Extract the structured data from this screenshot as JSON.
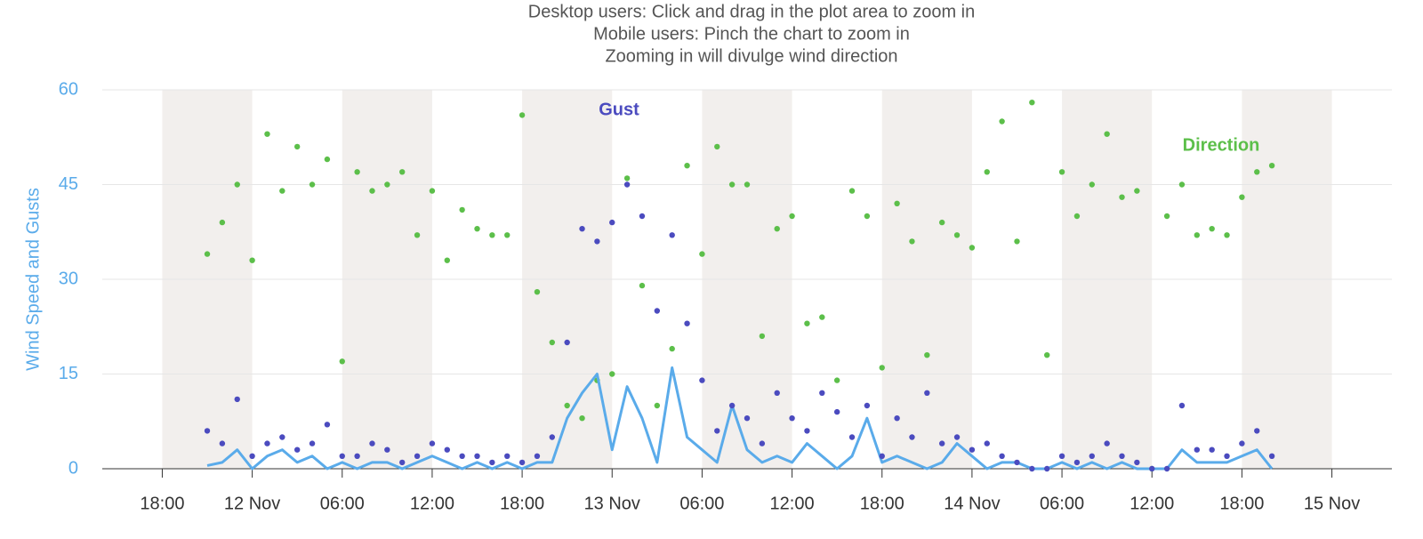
{
  "chart_data": {
    "type": "line",
    "title": "Desktop users: Click and drag in the plot area to zoom in",
    "subtitle": [
      "Mobile users: Pinch the chart to zoom in",
      "Zooming in will divulge wind direction"
    ],
    "y_label": "Wind Speed and Gusts",
    "annotations": [
      "Gust",
      "Direction"
    ],
    "x": [
      "11 Nov 21:00",
      "11 Nov 22:00",
      "11 Nov 23:00",
      "12 Nov 00:00",
      "12 Nov 01:00",
      "12 Nov 02:00",
      "12 Nov 03:00",
      "12 Nov 04:00",
      "12 Nov 05:00",
      "12 Nov 06:00",
      "12 Nov 07:00",
      "12 Nov 08:00",
      "12 Nov 09:00",
      "12 Nov 10:00",
      "12 Nov 11:00",
      "12 Nov 12:00",
      "12 Nov 13:00",
      "12 Nov 14:00",
      "12 Nov 15:00",
      "12 Nov 16:00",
      "12 Nov 17:00",
      "12 Nov 18:00",
      "12 Nov 19:00",
      "12 Nov 20:00",
      "12 Nov 21:00",
      "12 Nov 22:00",
      "12 Nov 23:00",
      "13 Nov 00:00",
      "13 Nov 01:00",
      "13 Nov 02:00",
      "13 Nov 03:00",
      "13 Nov 04:00",
      "13 Nov 05:00",
      "13 Nov 06:00",
      "13 Nov 07:00",
      "13 Nov 08:00",
      "13 Nov 09:00",
      "13 Nov 10:00",
      "13 Nov 11:00",
      "13 Nov 12:00",
      "13 Nov 13:00",
      "13 Nov 14:00",
      "13 Nov 15:00",
      "13 Nov 16:00",
      "13 Nov 17:00",
      "13 Nov 18:00",
      "13 Nov 19:00",
      "13 Nov 20:00",
      "13 Nov 21:00",
      "13 Nov 22:00",
      "13 Nov 23:00",
      "14 Nov 00:00",
      "14 Nov 01:00",
      "14 Nov 02:00",
      "14 Nov 03:00",
      "14 Nov 04:00",
      "14 Nov 05:00",
      "14 Nov 06:00",
      "14 Nov 07:00",
      "14 Nov 08:00",
      "14 Nov 09:00",
      "14 Nov 10:00",
      "14 Nov 11:00",
      "14 Nov 12:00",
      "14 Nov 13:00",
      "14 Nov 14:00",
      "14 Nov 15:00",
      "14 Nov 16:00",
      "14 Nov 17:00",
      "14 Nov 18:00",
      "14 Nov 19:00",
      "14 Nov 20:00"
    ],
    "series": [
      {
        "name": "Wind Speed",
        "type": "line",
        "color": "#5aabea",
        "values": [
          0.5,
          1,
          3,
          0,
          2,
          3,
          1,
          2,
          0,
          1,
          0,
          1,
          1,
          0,
          1,
          2,
          1,
          0,
          1,
          0,
          1,
          0,
          1,
          1,
          8,
          12,
          15,
          3,
          13,
          8,
          1,
          16,
          5,
          3,
          1,
          10,
          3,
          1,
          2,
          1,
          4,
          2,
          0,
          2,
          8,
          1,
          2,
          1,
          0,
          1,
          4,
          2,
          0,
          1,
          1,
          0,
          0,
          1,
          0,
          1,
          0,
          1,
          0,
          0,
          0,
          3,
          1,
          1,
          1,
          2,
          3,
          0
        ]
      },
      {
        "name": "Gust",
        "type": "scatter",
        "color": "#4b4bbf",
        "values": [
          6,
          4,
          11,
          2,
          4,
          5,
          3,
          4,
          7,
          2,
          2,
          4,
          3,
          1,
          2,
          4,
          3,
          2,
          2,
          1,
          2,
          1,
          2,
          5,
          20,
          38,
          36,
          39,
          45,
          40,
          25,
          37,
          23,
          14,
          6,
          10,
          8,
          4,
          12,
          8,
          6,
          12,
          9,
          5,
          10,
          2,
          8,
          5,
          12,
          4,
          5,
          3,
          4,
          2,
          1,
          0,
          0,
          2,
          1,
          2,
          4,
          2,
          1,
          0,
          0,
          10,
          3,
          3,
          2,
          4,
          6,
          2
        ]
      },
      {
        "name": "Direction",
        "type": "scatter",
        "color": "#5cbf4a",
        "values": [
          34,
          39,
          45,
          33,
          53,
          44,
          51,
          45,
          49,
          17,
          47,
          44,
          45,
          47,
          37,
          44,
          33,
          41,
          38,
          37,
          37,
          56,
          28,
          20,
          10,
          8,
          14,
          15,
          46,
          29,
          10,
          19,
          48,
          34,
          51,
          45,
          45,
          21,
          38,
          40,
          23,
          24,
          14,
          44,
          40,
          16,
          42,
          36,
          18,
          39,
          37,
          35,
          47,
          55,
          36,
          58,
          18,
          47,
          40,
          45,
          53,
          43,
          44,
          0,
          40,
          45,
          37,
          38,
          37,
          43,
          47,
          48
        ]
      }
    ],
    "xlim": [
      "11 Nov 14:00",
      "15 Nov 04:00"
    ],
    "xticks": [
      {
        "value": "11 Nov 18:00",
        "label": "18:00"
      },
      {
        "value": "12 Nov 00:00",
        "label": "12 Nov"
      },
      {
        "value": "12 Nov 06:00",
        "label": "06:00"
      },
      {
        "value": "12 Nov 12:00",
        "label": "12:00"
      },
      {
        "value": "12 Nov 18:00",
        "label": "18:00"
      },
      {
        "value": "13 Nov 00:00",
        "label": "13 Nov"
      },
      {
        "value": "13 Nov 06:00",
        "label": "06:00"
      },
      {
        "value": "13 Nov 12:00",
        "label": "12:00"
      },
      {
        "value": "13 Nov 18:00",
        "label": "18:00"
      },
      {
        "value": "14 Nov 00:00",
        "label": "14 Nov"
      },
      {
        "value": "14 Nov 06:00",
        "label": "06:00"
      },
      {
        "value": "14 Nov 12:00",
        "label": "12:00"
      },
      {
        "value": "14 Nov 18:00",
        "label": "18:00"
      },
      {
        "value": "15 Nov 00:00",
        "label": "15 Nov"
      }
    ],
    "ylim": [
      0,
      60
    ],
    "yticks": [
      0,
      15,
      30,
      45,
      60
    ],
    "grid": true
  }
}
